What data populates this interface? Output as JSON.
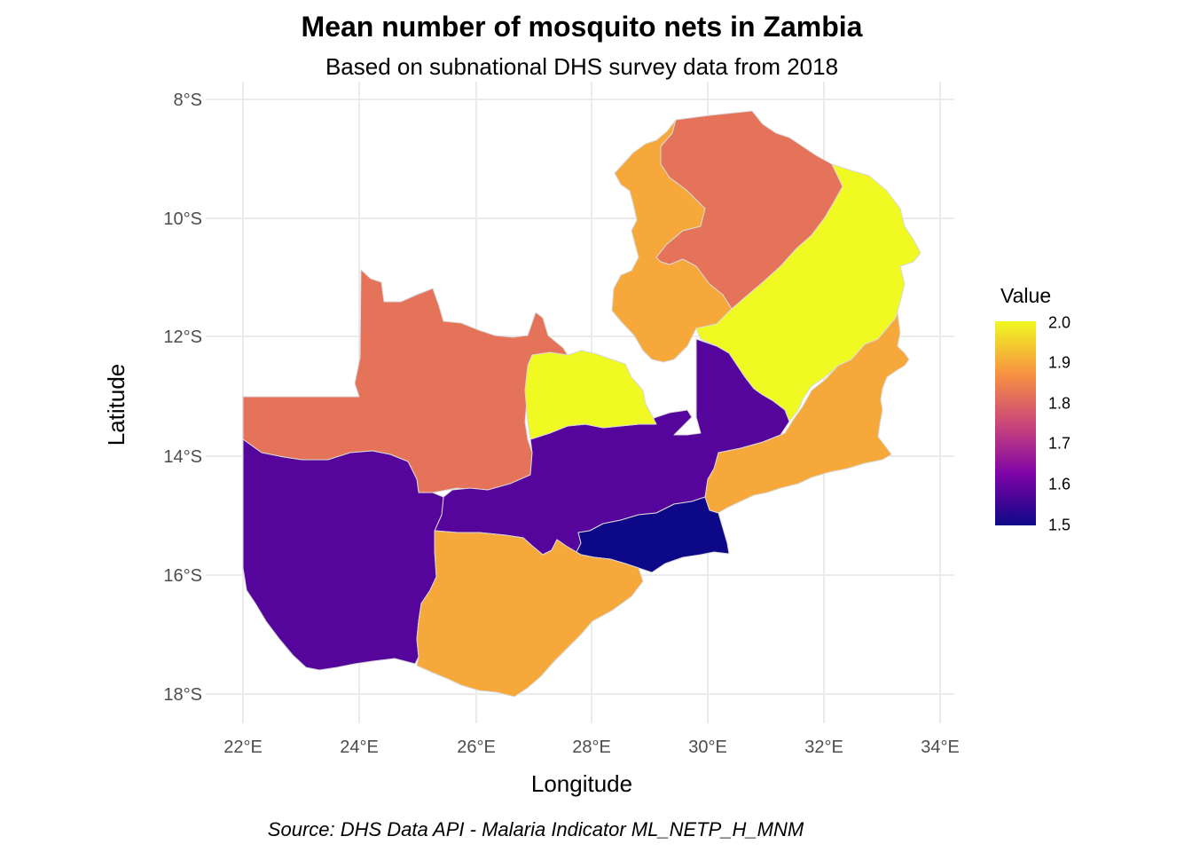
{
  "title": "Mean number of mosquito nets in Zambia",
  "subtitle": "Based on subnational DHS survey data from 2018",
  "caption": "Source: DHS Data API - Malaria Indicator ML_NETP_H_MNM",
  "colors": {
    "grid": "#ebebeb",
    "border": "#d9d9d9",
    "scale": [
      "#0d0887",
      "#7e03a8",
      "#cc4778",
      "#f89540",
      "#f0f921"
    ]
  },
  "legend": {
    "title": "Value",
    "labels": [
      "2.0",
      "1.9",
      "1.8",
      "1.7",
      "1.6",
      "1.5"
    ]
  },
  "chart_data": {
    "type": "choropleth",
    "title": "Mean number of mosquito nets in Zambia",
    "subtitle": "Based on subnational DHS survey data from 2018",
    "xlabel": "Longitude",
    "ylabel": "Latitude",
    "x_ticks": [
      "22°E",
      "24°E",
      "26°E",
      "28°E",
      "30°E",
      "32°E",
      "34°E"
    ],
    "y_ticks": [
      "8°S",
      "10°S",
      "12°S",
      "14°S",
      "16°S",
      "18°S"
    ],
    "color_scale": {
      "min": 1.5,
      "max": 2.0
    },
    "grid": true,
    "legend_position": "right",
    "regions": [
      {
        "value": 1.82
      },
      {
        "value": 1.9
      },
      {
        "value": 2.0
      },
      {
        "value": 1.9
      },
      {
        "value": 1.82
      },
      {
        "value": 1.58
      },
      {
        "value": 2.0
      },
      {
        "value": 1.58
      },
      {
        "value": 1.5
      },
      {
        "value": 1.9
      }
    ]
  }
}
